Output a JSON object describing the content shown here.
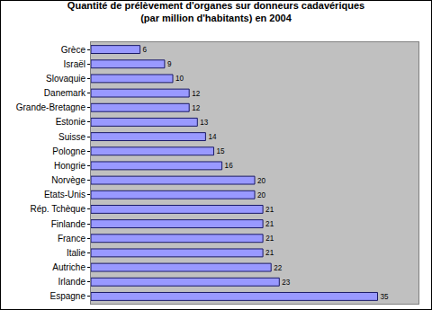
{
  "chart_data": {
    "type": "bar",
    "orientation": "horizontal",
    "title": "Quantité de prélèvement d'organes sur donneurs cadavériques",
    "subtitle": "(par million d'habitants) en 2004",
    "categories": [
      "Grèce",
      "Israël",
      "Slovaquie",
      "Danemark",
      "Grande-Bretagne",
      "Estonie",
      "Suisse",
      "Pologne",
      "Hongrie",
      "Norvège",
      "Etats-Unis",
      "Rép. Tchèque",
      "Finlande",
      "France",
      "Italie",
      "Autriche",
      "Irlande",
      "Espagne"
    ],
    "values": [
      6,
      9,
      10,
      12,
      12,
      13,
      14,
      15,
      16,
      20,
      20,
      21,
      21,
      21,
      21,
      22,
      23,
      35
    ],
    "color": "#9999ff",
    "xlim": [
      0,
      40
    ],
    "grid": false,
    "data_labels": true,
    "tick_labels": "y"
  }
}
